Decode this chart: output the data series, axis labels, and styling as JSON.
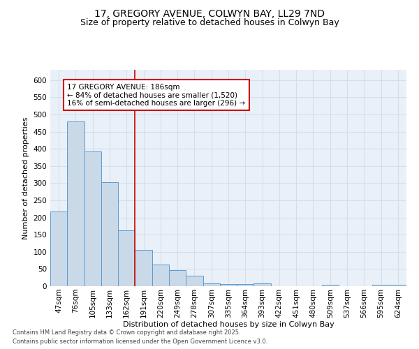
{
  "title_line1": "17, GREGORY AVENUE, COLWYN BAY, LL29 7ND",
  "title_line2": "Size of property relative to detached houses in Colwyn Bay",
  "xlabel": "Distribution of detached houses by size in Colwyn Bay",
  "ylabel": "Number of detached properties",
  "bar_labels": [
    "47sqm",
    "76sqm",
    "105sqm",
    "133sqm",
    "162sqm",
    "191sqm",
    "220sqm",
    "249sqm",
    "278sqm",
    "307sqm",
    "335sqm",
    "364sqm",
    "393sqm",
    "422sqm",
    "451sqm",
    "480sqm",
    "509sqm",
    "537sqm",
    "566sqm",
    "595sqm",
    "624sqm"
  ],
  "bar_values": [
    218,
    480,
    393,
    302,
    163,
    106,
    63,
    46,
    30,
    9,
    6,
    6,
    8,
    0,
    0,
    0,
    4,
    0,
    0,
    5,
    5
  ],
  "bar_color": "#c9d9e8",
  "bar_edge_color": "#5b9bd5",
  "grid_color": "#d0dff0",
  "vline_x_idx": 5,
  "vline_color": "#cc0000",
  "annotation_title": "17 GREGORY AVENUE: 186sqm",
  "annotation_line1": "← 84% of detached houses are smaller (1,520)",
  "annotation_line2": "16% of semi-detached houses are larger (296) →",
  "annotation_box_color": "#ffffff",
  "annotation_box_edge": "#cc0000",
  "ylim": [
    0,
    630
  ],
  "yticks": [
    0,
    50,
    100,
    150,
    200,
    250,
    300,
    350,
    400,
    450,
    500,
    550,
    600
  ],
  "footer_line1": "Contains HM Land Registry data © Crown copyright and database right 2025.",
  "footer_line2": "Contains public sector information licensed under the Open Government Licence v3.0.",
  "bg_color": "#eaf0f8",
  "fig_bg_color": "#ffffff",
  "title_fontsize": 10,
  "subtitle_fontsize": 9,
  "axis_label_fontsize": 8,
  "tick_fontsize": 7.5,
  "annotation_fontsize": 7.5,
  "footer_fontsize": 6
}
